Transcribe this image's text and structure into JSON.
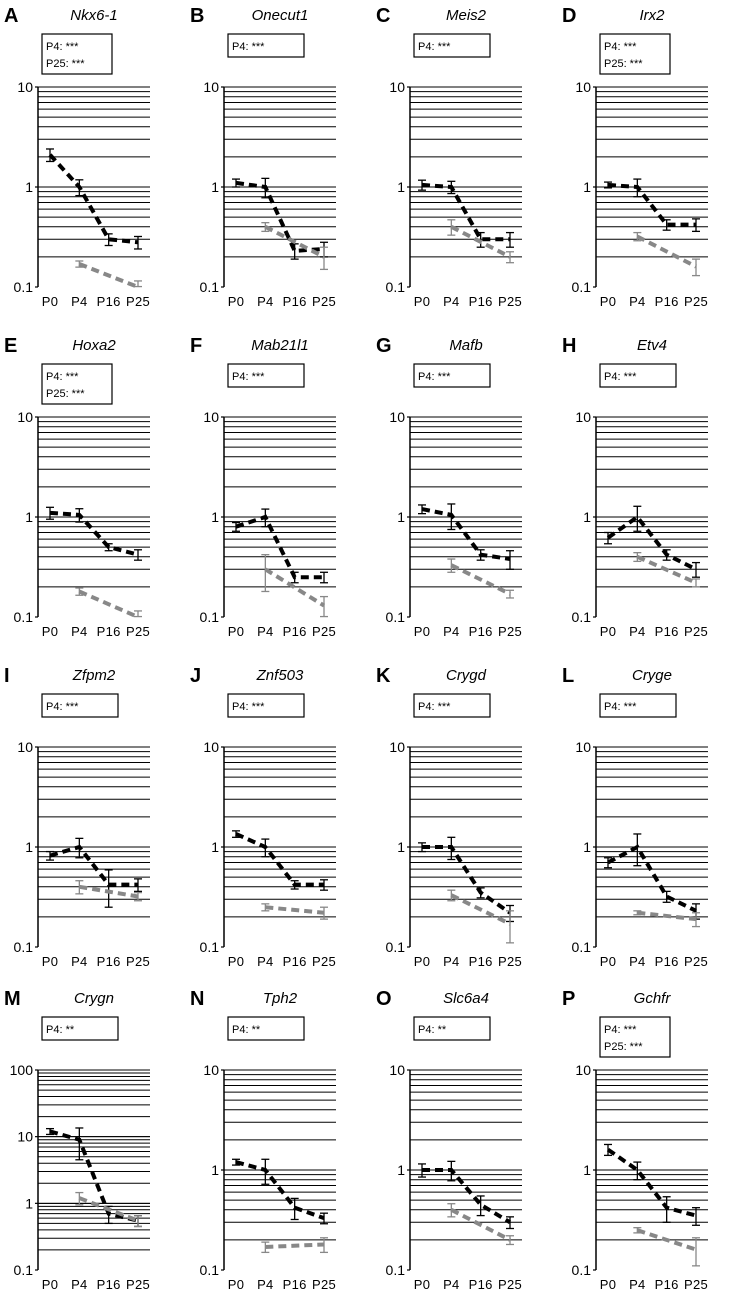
{
  "chart_data": [
    {
      "type": "line",
      "panel": "A",
      "title": "Nkx6-1",
      "y_scale": "log",
      "ylim": [
        0.1,
        10
      ],
      "y_ticks": [
        "10",
        "1",
        "0.1"
      ],
      "categories": [
        "P0",
        "P4",
        "P16",
        "P25"
      ],
      "annotation": [
        "P4: ***",
        "P25: ***"
      ],
      "grid": true,
      "series": [
        {
          "color": "#000000",
          "values": [
            2.1,
            1.0,
            0.3,
            0.28
          ],
          "errors": [
            0.3,
            0.18,
            0.04,
            0.04
          ]
        },
        {
          "color": "#888888",
          "values": [
            null,
            0.17,
            null,
            0.1
          ],
          "errors": [
            null,
            0.012,
            null,
            0.015
          ]
        }
      ]
    },
    {
      "type": "line",
      "panel": "B",
      "title": "Onecut1",
      "y_scale": "log",
      "ylim": [
        0.1,
        10
      ],
      "y_ticks": [
        "10",
        "1",
        "0.1"
      ],
      "categories": [
        "P0",
        "P4",
        "P16",
        "P25"
      ],
      "annotation": [
        "P4: ***"
      ],
      "grid": true,
      "series": [
        {
          "color": "#000000",
          "values": [
            1.1,
            1.0,
            0.23,
            0.24
          ],
          "errors": [
            0.1,
            0.22,
            0.04,
            0.04
          ]
        },
        {
          "color": "#888888",
          "values": [
            null,
            0.4,
            null,
            0.2
          ],
          "errors": [
            null,
            0.04,
            null,
            0.05
          ]
        }
      ]
    },
    {
      "type": "line",
      "panel": "C",
      "title": "Meis2",
      "y_scale": "log",
      "ylim": [
        0.1,
        10
      ],
      "y_ticks": [
        "10",
        "1",
        "0.1"
      ],
      "categories": [
        "P0",
        "P4",
        "P16",
        "P25"
      ],
      "annotation": [
        "P4: ***"
      ],
      "grid": true,
      "series": [
        {
          "color": "#000000",
          "values": [
            1.05,
            1.0,
            0.3,
            0.3
          ],
          "errors": [
            0.12,
            0.14,
            0.05,
            0.05
          ]
        },
        {
          "color": "#888888",
          "values": [
            null,
            0.4,
            null,
            0.2
          ],
          "errors": [
            null,
            0.07,
            null,
            0.025
          ]
        }
      ]
    },
    {
      "type": "line",
      "panel": "D",
      "title": "Irx2",
      "y_scale": "log",
      "ylim": [
        0.1,
        10
      ],
      "y_ticks": [
        "10",
        "1",
        "0.1"
      ],
      "categories": [
        "P0",
        "P4",
        "P16",
        "P25"
      ],
      "annotation": [
        "P4: ***",
        "P25: ***"
      ],
      "grid": true,
      "series": [
        {
          "color": "#000000",
          "values": [
            1.05,
            1.0,
            0.42,
            0.42
          ],
          "errors": [
            0.07,
            0.2,
            0.05,
            0.06
          ]
        },
        {
          "color": "#888888",
          "values": [
            null,
            0.32,
            null,
            0.16
          ],
          "errors": [
            null,
            0.03,
            null,
            0.03
          ]
        }
      ]
    },
    {
      "type": "line",
      "panel": "E",
      "title": "Hoxa2",
      "y_scale": "log",
      "ylim": [
        0.1,
        10
      ],
      "y_ticks": [
        "10",
        "1",
        "0.1"
      ],
      "categories": [
        "P0",
        "P4",
        "P16",
        "P25"
      ],
      "annotation": [
        "P4: ***",
        "P25: ***"
      ],
      "grid": true,
      "series": [
        {
          "color": "#000000",
          "values": [
            1.1,
            1.05,
            0.5,
            0.42
          ],
          "errors": [
            0.15,
            0.16,
            0.04,
            0.05
          ]
        },
        {
          "color": "#888888",
          "values": [
            null,
            0.18,
            null,
            0.1
          ],
          "errors": [
            null,
            0.015,
            null,
            0.015
          ]
        }
      ]
    },
    {
      "type": "line",
      "panel": "F",
      "title": "Mab21l1",
      "y_scale": "log",
      "ylim": [
        0.1,
        10
      ],
      "y_ticks": [
        "10",
        "1",
        "0.1"
      ],
      "categories": [
        "P0",
        "P4",
        "P16",
        "P25"
      ],
      "annotation": [
        "P4: ***"
      ],
      "grid": true,
      "series": [
        {
          "color": "#000000",
          "values": [
            0.8,
            1.0,
            0.25,
            0.25
          ],
          "errors": [
            0.08,
            0.2,
            0.03,
            0.03
          ]
        },
        {
          "color": "#888888",
          "values": [
            null,
            0.3,
            null,
            0.13
          ],
          "errors": [
            null,
            0.12,
            null,
            0.03
          ]
        }
      ]
    },
    {
      "type": "line",
      "panel": "G",
      "title": "Mafb",
      "y_scale": "log",
      "ylim": [
        0.1,
        10
      ],
      "y_ticks": [
        "10",
        "1",
        "0.1"
      ],
      "categories": [
        "P0",
        "P4",
        "P16",
        "P25"
      ],
      "annotation": [
        "P4: ***"
      ],
      "grid": true,
      "series": [
        {
          "color": "#000000",
          "values": [
            1.2,
            1.05,
            0.42,
            0.38
          ],
          "errors": [
            0.12,
            0.3,
            0.05,
            0.08
          ]
        },
        {
          "color": "#888888",
          "values": [
            null,
            0.33,
            null,
            0.17
          ],
          "errors": [
            null,
            0.05,
            null,
            0.015
          ]
        }
      ]
    },
    {
      "type": "line",
      "panel": "H",
      "title": "Etv4",
      "y_scale": "log",
      "ylim": [
        0.1,
        10
      ],
      "y_ticks": [
        "10",
        "1",
        "0.1"
      ],
      "categories": [
        "P0",
        "P4",
        "P16",
        "P25"
      ],
      "annotation": [
        "P4: ***"
      ],
      "grid": true,
      "series": [
        {
          "color": "#000000",
          "values": [
            0.62,
            1.0,
            0.42,
            0.3
          ],
          "errors": [
            0.08,
            0.28,
            0.05,
            0.05
          ]
        },
        {
          "color": "#888888",
          "values": [
            null,
            0.4,
            null,
            0.22
          ],
          "errors": [
            null,
            0.04,
            null,
            0.02
          ]
        }
      ]
    },
    {
      "type": "line",
      "panel": "I",
      "title": "Zfpm2",
      "y_scale": "log",
      "ylim": [
        0.1,
        10
      ],
      "y_ticks": [
        "10",
        "1",
        "0.1"
      ],
      "categories": [
        "P0",
        "P4",
        "P16",
        "P25"
      ],
      "annotation": [
        "P4: ***"
      ],
      "grid": true,
      "series": [
        {
          "color": "#000000",
          "values": [
            0.82,
            1.0,
            0.42,
            0.42
          ],
          "errors": [
            0.08,
            0.22,
            0.17,
            0.06
          ]
        },
        {
          "color": "#888888",
          "values": [
            null,
            0.4,
            null,
            0.32
          ],
          "errors": [
            null,
            0.06,
            null,
            0.03
          ]
        }
      ]
    },
    {
      "type": "line",
      "panel": "J",
      "title": "Znf503",
      "y_scale": "log",
      "ylim": [
        0.1,
        10
      ],
      "y_ticks": [
        "10",
        "1",
        "0.1"
      ],
      "categories": [
        "P0",
        "P4",
        "P16",
        "P25"
      ],
      "annotation": [
        "P4: ***"
      ],
      "grid": true,
      "series": [
        {
          "color": "#000000",
          "values": [
            1.35,
            1.0,
            0.42,
            0.42
          ],
          "errors": [
            0.1,
            0.2,
            0.04,
            0.05
          ]
        },
        {
          "color": "#888888",
          "values": [
            null,
            0.25,
            null,
            0.22
          ],
          "errors": [
            null,
            0.02,
            null,
            0.03
          ]
        }
      ]
    },
    {
      "type": "line",
      "panel": "K",
      "title": "Crygd",
      "y_scale": "log",
      "ylim": [
        0.1,
        10
      ],
      "y_ticks": [
        "10",
        "1",
        "0.1"
      ],
      "categories": [
        "P0",
        "P4",
        "P16",
        "P25"
      ],
      "annotation": [
        "P4: ***"
      ],
      "grid": true,
      "series": [
        {
          "color": "#000000",
          "values": [
            1.0,
            1.0,
            0.35,
            0.22
          ],
          "errors": [
            0.1,
            0.25,
            0.04,
            0.04
          ]
        },
        {
          "color": "#888888",
          "values": [
            null,
            0.33,
            null,
            0.17
          ],
          "errors": [
            null,
            0.04,
            null,
            0.06
          ]
        }
      ]
    },
    {
      "type": "line",
      "panel": "L",
      "title": "Cryge",
      "y_scale": "log",
      "ylim": [
        0.1,
        10
      ],
      "y_ticks": [
        "10",
        "1",
        "0.1"
      ],
      "categories": [
        "P0",
        "P4",
        "P16",
        "P25"
      ],
      "annotation": [
        "P4: ***"
      ],
      "grid": true,
      "series": [
        {
          "color": "#000000",
          "values": [
            0.7,
            1.0,
            0.32,
            0.23
          ],
          "errors": [
            0.08,
            0.35,
            0.04,
            0.04
          ]
        },
        {
          "color": "#888888",
          "values": [
            null,
            0.22,
            null,
            0.19
          ],
          "errors": [
            null,
            0.01,
            null,
            0.03
          ]
        }
      ]
    },
    {
      "type": "line",
      "panel": "M",
      "title": "Crygn",
      "y_scale": "log",
      "ylim": [
        0.1,
        100
      ],
      "y_ticks": [
        "100",
        "10",
        "1",
        "0.1"
      ],
      "categories": [
        "P0",
        "P4",
        "P16",
        "P25"
      ],
      "annotation": [
        "P4: **"
      ],
      "grid": true,
      "series": [
        {
          "color": "#000000",
          "values": [
            12,
            9,
            0.7,
            0.55
          ],
          "errors": [
            1.2,
            4.5,
            0.2,
            0.1
          ]
        },
        {
          "color": "#888888",
          "values": [
            null,
            1.2,
            null,
            0.55
          ],
          "errors": [
            null,
            0.25,
            null,
            0.1
          ]
        }
      ]
    },
    {
      "type": "line",
      "panel": "N",
      "title": "Tph2",
      "y_scale": "log",
      "ylim": [
        0.1,
        10
      ],
      "y_ticks": [
        "10",
        "1",
        "0.1"
      ],
      "categories": [
        "P0",
        "P4",
        "P16",
        "P25"
      ],
      "annotation": [
        "P4: **"
      ],
      "grid": true,
      "series": [
        {
          "color": "#000000",
          "values": [
            1.2,
            1.0,
            0.42,
            0.33
          ],
          "errors": [
            0.08,
            0.28,
            0.1,
            0.04
          ]
        },
        {
          "color": "#888888",
          "values": [
            null,
            0.17,
            null,
            0.18
          ],
          "errors": [
            null,
            0.02,
            null,
            0.03
          ]
        }
      ]
    },
    {
      "type": "line",
      "panel": "O",
      "title": "Slc6a4",
      "y_scale": "log",
      "ylim": [
        0.1,
        10
      ],
      "y_ticks": [
        "10",
        "1",
        "0.1"
      ],
      "categories": [
        "P0",
        "P4",
        "P16",
        "P25"
      ],
      "annotation": [
        "P4: **"
      ],
      "grid": true,
      "series": [
        {
          "color": "#000000",
          "values": [
            1.0,
            1.0,
            0.45,
            0.3
          ],
          "errors": [
            0.15,
            0.22,
            0.1,
            0.04
          ]
        },
        {
          "color": "#888888",
          "values": [
            null,
            0.4,
            null,
            0.2
          ],
          "errors": [
            null,
            0.06,
            null,
            0.02
          ]
        }
      ]
    },
    {
      "type": "line",
      "panel": "P",
      "title": "Gchfr",
      "y_scale": "log",
      "ylim": [
        0.1,
        10
      ],
      "y_ticks": [
        "10",
        "1",
        "0.1"
      ],
      "categories": [
        "P0",
        "P4",
        "P16",
        "P25"
      ],
      "annotation": [
        "P4: ***",
        "P25: ***"
      ],
      "grid": true,
      "series": [
        {
          "color": "#000000",
          "values": [
            1.6,
            1.0,
            0.42,
            0.35
          ],
          "errors": [
            0.2,
            0.2,
            0.12,
            0.07
          ]
        },
        {
          "color": "#888888",
          "values": [
            null,
            0.25,
            null,
            0.16
          ],
          "errors": [
            null,
            0.015,
            null,
            0.05
          ]
        }
      ]
    }
  ]
}
